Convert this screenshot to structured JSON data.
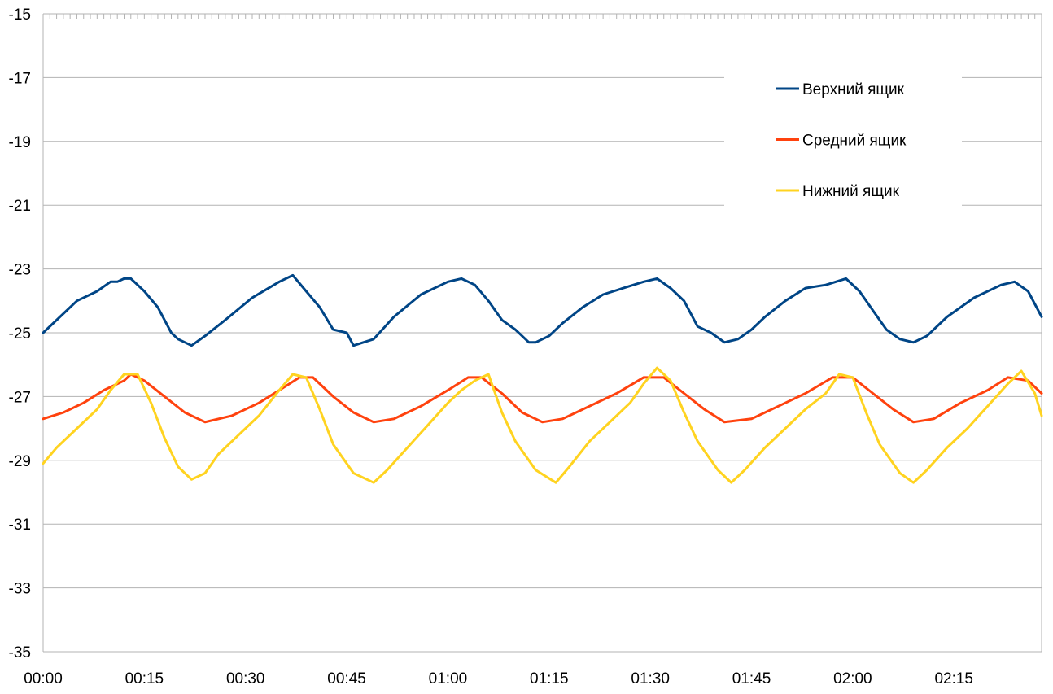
{
  "chart_data": {
    "type": "line",
    "title": "",
    "xlabel": "",
    "ylabel": "",
    "ylim": [
      -35,
      -15
    ],
    "y_ticks": [
      "-15",
      "-17",
      "-19",
      "-21",
      "-23",
      "-25",
      "-27",
      "-29",
      "-31",
      "-33",
      "-35"
    ],
    "xlim_minutes": [
      0,
      148
    ],
    "x_ticks": [
      {
        "minute": 0,
        "label": "00:00"
      },
      {
        "minute": 15,
        "label": "00:15"
      },
      {
        "minute": 30,
        "label": "00:30"
      },
      {
        "minute": 45,
        "label": "00:45"
      },
      {
        "minute": 60,
        "label": "01:00"
      },
      {
        "minute": 75,
        "label": "01:15"
      },
      {
        "minute": 90,
        "label": "01:30"
      },
      {
        "minute": 105,
        "label": "01:45"
      },
      {
        "minute": 120,
        "label": "02:00"
      },
      {
        "minute": 135,
        "label": "02:15"
      }
    ],
    "grid": "horizontal",
    "legend_position": "top-right",
    "series": [
      {
        "name": "Верхний ящик",
        "color": "#004586",
        "points": [
          [
            0,
            -25.0
          ],
          [
            3,
            -24.4
          ],
          [
            5,
            -24.0
          ],
          [
            8,
            -23.7
          ],
          [
            10,
            -23.4
          ],
          [
            11,
            -23.4
          ],
          [
            12,
            -23.3
          ],
          [
            13,
            -23.3
          ],
          [
            14,
            -23.5
          ],
          [
            15,
            -23.7
          ],
          [
            17,
            -24.2
          ],
          [
            19,
            -25.0
          ],
          [
            20,
            -25.2
          ],
          [
            22,
            -25.4
          ],
          [
            24,
            -25.1
          ],
          [
            27,
            -24.6
          ],
          [
            31,
            -23.9
          ],
          [
            35,
            -23.4
          ],
          [
            37,
            -23.2
          ],
          [
            39,
            -23.7
          ],
          [
            41,
            -24.2
          ],
          [
            43,
            -24.9
          ],
          [
            45,
            -25.0
          ],
          [
            46,
            -25.4
          ],
          [
            49,
            -25.2
          ],
          [
            52,
            -24.5
          ],
          [
            56,
            -23.8
          ],
          [
            60,
            -23.4
          ],
          [
            62,
            -23.3
          ],
          [
            64,
            -23.5
          ],
          [
            66,
            -24.0
          ],
          [
            68,
            -24.6
          ],
          [
            70,
            -24.9
          ],
          [
            72,
            -25.3
          ],
          [
            73,
            -25.3
          ],
          [
            75,
            -25.1
          ],
          [
            77,
            -24.7
          ],
          [
            80,
            -24.2
          ],
          [
            83,
            -23.8
          ],
          [
            86,
            -23.6
          ],
          [
            89,
            -23.4
          ],
          [
            91,
            -23.3
          ],
          [
            93,
            -23.6
          ],
          [
            95,
            -24.0
          ],
          [
            97,
            -24.8
          ],
          [
            99,
            -25.0
          ],
          [
            101,
            -25.3
          ],
          [
            103,
            -25.2
          ],
          [
            105,
            -24.9
          ],
          [
            107,
            -24.5
          ],
          [
            110,
            -24.0
          ],
          [
            113,
            -23.6
          ],
          [
            116,
            -23.5
          ],
          [
            119,
            -23.3
          ],
          [
            121,
            -23.7
          ],
          [
            123,
            -24.3
          ],
          [
            125,
            -24.9
          ],
          [
            127,
            -25.2
          ],
          [
            129,
            -25.3
          ],
          [
            131,
            -25.1
          ],
          [
            134,
            -24.5
          ],
          [
            138,
            -23.9
          ],
          [
            142,
            -23.5
          ],
          [
            144,
            -23.4
          ],
          [
            146,
            -23.7
          ],
          [
            148,
            -24.5
          ]
        ]
      },
      {
        "name": "Средний ящик",
        "color": "#ff420e",
        "points": [
          [
            0,
            -27.7
          ],
          [
            3,
            -27.5
          ],
          [
            6,
            -27.2
          ],
          [
            9,
            -26.8
          ],
          [
            12,
            -26.5
          ],
          [
            13,
            -26.3
          ],
          [
            15,
            -26.5
          ],
          [
            18,
            -27.0
          ],
          [
            21,
            -27.5
          ],
          [
            24,
            -27.8
          ],
          [
            28,
            -27.6
          ],
          [
            32,
            -27.2
          ],
          [
            35,
            -26.8
          ],
          [
            38,
            -26.4
          ],
          [
            40,
            -26.4
          ],
          [
            43,
            -27.0
          ],
          [
            46,
            -27.5
          ],
          [
            49,
            -27.8
          ],
          [
            52,
            -27.7
          ],
          [
            56,
            -27.3
          ],
          [
            60,
            -26.8
          ],
          [
            63,
            -26.4
          ],
          [
            65,
            -26.4
          ],
          [
            68,
            -26.9
          ],
          [
            71,
            -27.5
          ],
          [
            74,
            -27.8
          ],
          [
            77,
            -27.7
          ],
          [
            81,
            -27.3
          ],
          [
            85,
            -26.9
          ],
          [
            89,
            -26.4
          ],
          [
            92,
            -26.4
          ],
          [
            95,
            -26.9
          ],
          [
            98,
            -27.4
          ],
          [
            101,
            -27.8
          ],
          [
            105,
            -27.7
          ],
          [
            109,
            -27.3
          ],
          [
            113,
            -26.9
          ],
          [
            117,
            -26.4
          ],
          [
            120,
            -26.4
          ],
          [
            123,
            -26.9
          ],
          [
            126,
            -27.4
          ],
          [
            129,
            -27.8
          ],
          [
            132,
            -27.7
          ],
          [
            136,
            -27.2
          ],
          [
            140,
            -26.8
          ],
          [
            143,
            -26.4
          ],
          [
            146,
            -26.5
          ],
          [
            148,
            -26.9
          ]
        ]
      },
      {
        "name": "Нижний ящик",
        "color": "#ffd320",
        "points": [
          [
            0,
            -29.1
          ],
          [
            2,
            -28.6
          ],
          [
            5,
            -28.0
          ],
          [
            8,
            -27.4
          ],
          [
            10,
            -26.8
          ],
          [
            12,
            -26.3
          ],
          [
            14,
            -26.3
          ],
          [
            16,
            -27.2
          ],
          [
            18,
            -28.3
          ],
          [
            20,
            -29.2
          ],
          [
            22,
            -29.6
          ],
          [
            24,
            -29.4
          ],
          [
            26,
            -28.8
          ],
          [
            29,
            -28.2
          ],
          [
            32,
            -27.6
          ],
          [
            35,
            -26.8
          ],
          [
            37,
            -26.3
          ],
          [
            39,
            -26.4
          ],
          [
            41,
            -27.4
          ],
          [
            43,
            -28.5
          ],
          [
            46,
            -29.4
          ],
          [
            49,
            -29.7
          ],
          [
            51,
            -29.3
          ],
          [
            54,
            -28.6
          ],
          [
            57,
            -27.9
          ],
          [
            60,
            -27.2
          ],
          [
            62,
            -26.8
          ],
          [
            64,
            -26.5
          ],
          [
            66,
            -26.3
          ],
          [
            68,
            -27.5
          ],
          [
            70,
            -28.4
          ],
          [
            73,
            -29.3
          ],
          [
            76,
            -29.7
          ],
          [
            78,
            -29.2
          ],
          [
            81,
            -28.4
          ],
          [
            84,
            -27.8
          ],
          [
            87,
            -27.2
          ],
          [
            89,
            -26.6
          ],
          [
            91,
            -26.1
          ],
          [
            93,
            -26.5
          ],
          [
            95,
            -27.5
          ],
          [
            97,
            -28.4
          ],
          [
            100,
            -29.3
          ],
          [
            102,
            -29.7
          ],
          [
            104,
            -29.3
          ],
          [
            107,
            -28.6
          ],
          [
            110,
            -28.0
          ],
          [
            113,
            -27.4
          ],
          [
            116,
            -26.9
          ],
          [
            118,
            -26.3
          ],
          [
            120,
            -26.4
          ],
          [
            122,
            -27.5
          ],
          [
            124,
            -28.5
          ],
          [
            127,
            -29.4
          ],
          [
            129,
            -29.7
          ],
          [
            131,
            -29.3
          ],
          [
            134,
            -28.6
          ],
          [
            137,
            -28.0
          ],
          [
            140,
            -27.3
          ],
          [
            143,
            -26.6
          ],
          [
            145,
            -26.2
          ],
          [
            147,
            -26.9
          ],
          [
            148,
            -27.6
          ]
        ]
      }
    ]
  }
}
